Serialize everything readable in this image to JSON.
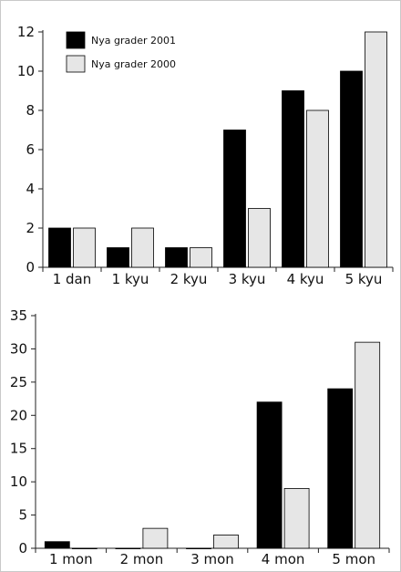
{
  "colors": {
    "series_2001": "#000000",
    "series_2000": "#e6e6e6",
    "axis": "#222222"
  },
  "chart_data": [
    {
      "type": "bar",
      "categories": [
        "1 dan",
        "1 kyu",
        "2 kyu",
        "3 kyu",
        "4 kyu",
        "5 kyu"
      ],
      "series": [
        {
          "name": "Nya grader 2001",
          "values": [
            2,
            1,
            1,
            7,
            9,
            10
          ]
        },
        {
          "name": "Nya grader 2000",
          "values": [
            2,
            2,
            1,
            3,
            8,
            12
          ]
        }
      ],
      "ylim": [
        0,
        12
      ],
      "yticks": [
        "0",
        "2",
        "4",
        "6",
        "8",
        "10",
        "12"
      ],
      "grid": false,
      "legend_position": "top-left"
    },
    {
      "type": "bar",
      "categories": [
        "1 mon",
        "2 mon",
        "3 mon",
        "4 mon",
        "5 mon"
      ],
      "series": [
        {
          "values": [
            1,
            0,
            0,
            22,
            24
          ]
        },
        {
          "values": [
            0,
            3,
            2,
            9,
            31
          ]
        }
      ],
      "ylim": [
        0,
        35
      ],
      "yticks": [
        "0",
        "5",
        "10",
        "15",
        "20",
        "25",
        "30",
        "35"
      ],
      "grid": false
    }
  ]
}
